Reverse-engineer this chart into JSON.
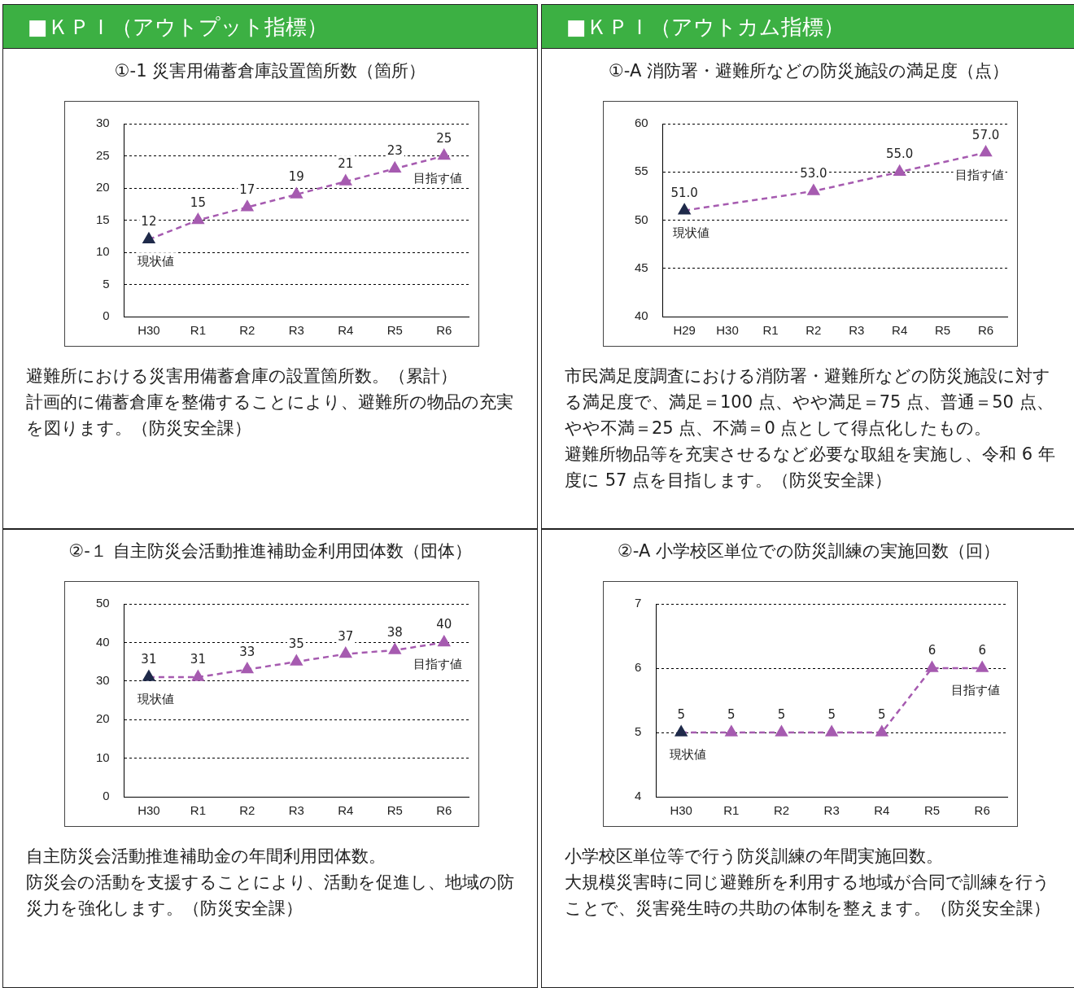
{
  "chart_data": [
    {
      "type": "line",
      "subtitle": "■ＫＰＩ（アウトプット指標）",
      "title": "①-1 災害用備蓄倉庫設置箇所数（箇所）",
      "categories": [
        "H30",
        "R1",
        "R2",
        "R3",
        "R4",
        "R5",
        "R6"
      ],
      "series": [
        {
          "color": "#a65bb0",
          "colors": [
            "#1f2a4a",
            "#a65bb0",
            "#a65bb0",
            "#a65bb0",
            "#a65bb0",
            "#a65bb0",
            "#a65bb0"
          ],
          "values": [
            12,
            15,
            17,
            19,
            21,
            23,
            25
          ]
        }
      ],
      "ylim": [
        0,
        30
      ],
      "yticks": [
        0,
        5,
        10,
        15,
        20,
        25,
        30
      ],
      "grid": "y",
      "marker": "triangle",
      "line_style": "dashed",
      "data_labels": true,
      "annotations": [
        {
          "text": "現状値",
          "x": "H30",
          "y": 12
        },
        {
          "text": "目指す値",
          "x": "R6",
          "y": 25
        },
        "避難所における災害用備蓄倉庫の設置箇所数。（累計）",
        "計画的に備蓄倉庫を整備することにより、避難所の物品の充実を図ります。（防災安全課）"
      ]
    },
    {
      "type": "line",
      "subtitle": "■ＫＰＩ（アウトカム指標）",
      "title": "①-A 消防署・避難所などの防災施設の満足度（点）",
      "categories": [
        "H29",
        "H30",
        "R1",
        "R2",
        "R3",
        "R4",
        "R5",
        "R6"
      ],
      "series": [
        {
          "color": "#a65bb0",
          "colors": [
            "#1f2a4a",
            "#a65bb0",
            "#a65bb0",
            "#a65bb0",
            "#a65bb0",
            "#a65bb0",
            "#a65bb0",
            "#a65bb0"
          ],
          "values": [
            51,
            null,
            null,
            53,
            null,
            55,
            null,
            57
          ],
          "value_labels": [
            "51.0",
            null,
            null,
            "53.0",
            null,
            "55.0",
            null,
            "57.0"
          ]
        }
      ],
      "ylim": [
        40,
        60
      ],
      "yticks": [
        40,
        45,
        50,
        55,
        60
      ],
      "grid": "y",
      "marker": "triangle",
      "line_style": "dashed",
      "annotations": [
        {
          "text": "現状値",
          "x": "H29",
          "y": 51
        },
        {
          "text": "目指す値",
          "x": "R6",
          "y": 57
        },
        "市民満足度調査における消防署・避難所などの防災施設に対する満足度で、満足＝100 点、やや満足＝75 点、普通＝50 点、やや不満＝25 点、不満＝0 点として得点化したもの。",
        "避難所物品等を充実させるなど必要な取組を実施し、令和 6 年度に 57 点を目指します。（防災安全課）"
      ]
    },
    {
      "type": "line",
      "title": "②-１ 自主防災会活動推進補助金利用団体数（団体）",
      "categories": [
        "H30",
        "R1",
        "R2",
        "R3",
        "R4",
        "R5",
        "R6"
      ],
      "series": [
        {
          "color": "#a65bb0",
          "colors": [
            "#1f2a4a",
            "#a65bb0",
            "#a65bb0",
            "#a65bb0",
            "#a65bb0",
            "#a65bb0",
            "#a65bb0"
          ],
          "values": [
            31,
            31,
            33,
            35,
            37,
            38,
            40
          ]
        }
      ],
      "ylim": [
        0,
        50
      ],
      "yticks": [
        0,
        10,
        20,
        30,
        40,
        50
      ],
      "grid": "y",
      "marker": "triangle",
      "line_style": "dashed",
      "data_labels": true,
      "annotations": [
        {
          "text": "現状値",
          "x": "H30",
          "y": 31
        },
        {
          "text": "目指す値",
          "x": "R6",
          "y": 40
        },
        "自主防災会活動推進補助金の年間利用団体数。",
        "防災会の活動を支援することにより、活動を促進し、地域の防災力を強化します。（防災安全課）"
      ]
    },
    {
      "type": "line",
      "title": "②-A 小学校区単位での防災訓練の実施回数（回）",
      "categories": [
        "H30",
        "R1",
        "R2",
        "R3",
        "R4",
        "R5",
        "R6"
      ],
      "series": [
        {
          "color": "#a65bb0",
          "colors": [
            "#1f2a4a",
            "#a65bb0",
            "#a65bb0",
            "#a65bb0",
            "#a65bb0",
            "#a65bb0",
            "#a65bb0"
          ],
          "values": [
            5,
            5,
            5,
            5,
            5,
            6,
            6
          ]
        }
      ],
      "ylim": [
        4,
        7
      ],
      "yticks": [
        4,
        5,
        6,
        7
      ],
      "grid": "y",
      "marker": "triangle",
      "line_style": "dashed",
      "data_labels": true,
      "annotations": [
        {
          "text": "現状値",
          "x": "H30",
          "y": 5
        },
        {
          "text": "目指す値",
          "x": "R6",
          "y": 6
        },
        "小学校区単位等で行う防災訓練の年間実施回数。",
        "大規模災害時に同じ避難所を利用する地域が合同で訓練を行うことで、災害発生時の共助の体制を整えます。（防災安全課）"
      ]
    }
  ]
}
